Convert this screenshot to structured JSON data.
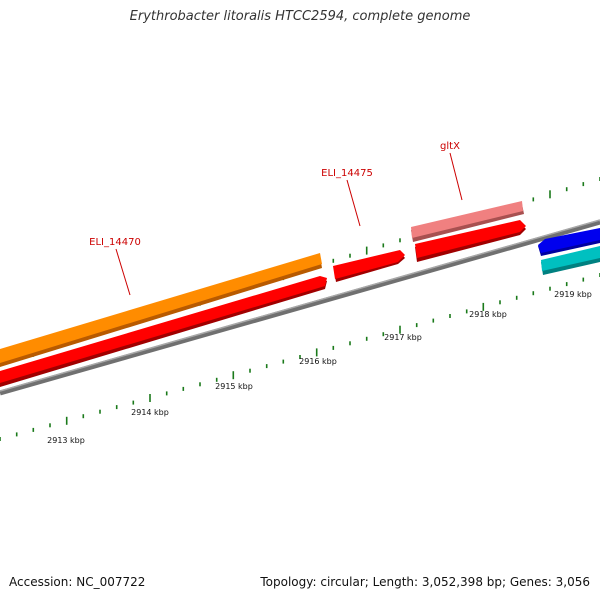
{
  "title": "Erythrobacter litoralis HTCC2594, complete genome",
  "footer": {
    "accession_text": "Accession: NC_007722",
    "summary_text": "Topology: circular; Length: 3,052,398 bp; Genes: 3,056"
  },
  "scale": {
    "unit": "kbp",
    "tick_labels": [
      "2913 kbp",
      "2914 kbp",
      "2915 kbp",
      "2916 kbp",
      "2917 kbp",
      "2918 kbp",
      "2919 kbp"
    ]
  },
  "gene_labels": [
    "ELI_14470",
    "ELI_14475",
    "gltX"
  ],
  "colors": {
    "backbone": "#808080",
    "tick": "#1a7a1a",
    "label": "#cc0000",
    "cds": "#ff0000",
    "gene": "#ff8c00",
    "rna_gene": "#f08080",
    "other_cds": "#0000ee",
    "other_gene": "#00c0c0"
  }
}
